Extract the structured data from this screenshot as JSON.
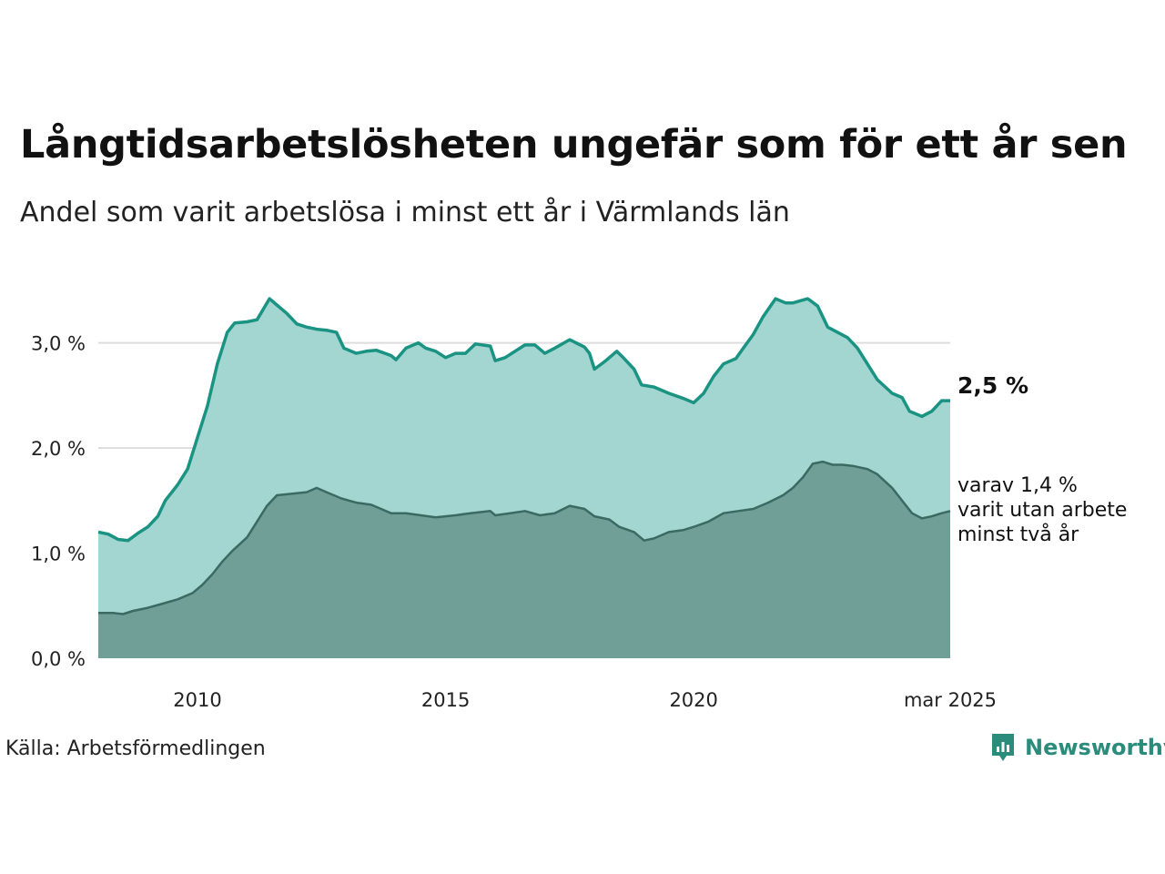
{
  "title": "Långtidsarbetslösheten ungefär som för ett år sen",
  "subtitle": "Andel som varit arbetslösa i minst ett år i Värmlands län",
  "source": "Källa: Arbetsförmedlingen",
  "brand": {
    "name": "Newsworthy",
    "icon": "newsworthy-logo-icon",
    "color": "#2b8c7c"
  },
  "end_label": "2,5 %",
  "annotation": [
    "varav 1,4 %",
    "varit utan arbete",
    "minst två år"
  ],
  "colors": {
    "upper_fill": "#a3d6d0",
    "upper_line": "#1a9383",
    "lower_fill": "#6f9f96",
    "lower_line": "#3b6a62",
    "grid": "#dddddd"
  },
  "chart_data": {
    "type": "area",
    "x_start": "2008-01",
    "x_end": "2025-03",
    "ylim": [
      0,
      3.75
    ],
    "y_ticks": [
      0,
      1,
      2,
      3
    ],
    "y_tick_labels": [
      "0,0 %",
      "1,0 %",
      "2,0 %",
      "3,0 %"
    ],
    "x_ticks": [
      2010,
      2015,
      2020,
      2025.17
    ],
    "x_tick_labels": [
      "2010",
      "2015",
      "2020",
      "mar 2025"
    ],
    "grid": true,
    "series": [
      {
        "label": "minst ett år",
        "points": [
          [
            2008.0,
            1.2
          ],
          [
            2008.2,
            1.18
          ],
          [
            2008.4,
            1.13
          ],
          [
            2008.6,
            1.12
          ],
          [
            2008.8,
            1.19
          ],
          [
            2009.0,
            1.25
          ],
          [
            2009.2,
            1.35
          ],
          [
            2009.35,
            1.5
          ],
          [
            2009.6,
            1.65
          ],
          [
            2009.8,
            1.8
          ],
          [
            2010.0,
            2.1
          ],
          [
            2010.2,
            2.4
          ],
          [
            2010.4,
            2.8
          ],
          [
            2010.6,
            3.1
          ],
          [
            2010.75,
            3.19
          ],
          [
            2011.0,
            3.2
          ],
          [
            2011.2,
            3.22
          ],
          [
            2011.45,
            3.42
          ],
          [
            2011.6,
            3.36
          ],
          [
            2011.8,
            3.28
          ],
          [
            2012.0,
            3.18
          ],
          [
            2012.2,
            3.15
          ],
          [
            2012.4,
            3.13
          ],
          [
            2012.6,
            3.12
          ],
          [
            2012.8,
            3.1
          ],
          [
            2012.95,
            2.95
          ],
          [
            2013.2,
            2.9
          ],
          [
            2013.4,
            2.92
          ],
          [
            2013.6,
            2.93
          ],
          [
            2013.9,
            2.88
          ],
          [
            2014.0,
            2.84
          ],
          [
            2014.2,
            2.95
          ],
          [
            2014.45,
            3.0
          ],
          [
            2014.6,
            2.95
          ],
          [
            2014.8,
            2.92
          ],
          [
            2015.0,
            2.86
          ],
          [
            2015.2,
            2.9
          ],
          [
            2015.4,
            2.9
          ],
          [
            2015.6,
            2.99
          ],
          [
            2015.9,
            2.97
          ],
          [
            2016.0,
            2.83
          ],
          [
            2016.2,
            2.86
          ],
          [
            2016.4,
            2.92
          ],
          [
            2016.6,
            2.98
          ],
          [
            2016.8,
            2.98
          ],
          [
            2017.0,
            2.9
          ],
          [
            2017.2,
            2.95
          ],
          [
            2017.5,
            3.03
          ],
          [
            2017.8,
            2.96
          ],
          [
            2017.9,
            2.9
          ],
          [
            2018.0,
            2.75
          ],
          [
            2018.2,
            2.82
          ],
          [
            2018.45,
            2.92
          ],
          [
            2018.6,
            2.85
          ],
          [
            2018.8,
            2.75
          ],
          [
            2018.95,
            2.6
          ],
          [
            2019.2,
            2.58
          ],
          [
            2019.5,
            2.52
          ],
          [
            2019.8,
            2.47
          ],
          [
            2020.0,
            2.43
          ],
          [
            2020.2,
            2.52
          ],
          [
            2020.4,
            2.68
          ],
          [
            2020.6,
            2.8
          ],
          [
            2020.85,
            2.85
          ],
          [
            2021.0,
            2.95
          ],
          [
            2021.2,
            3.08
          ],
          [
            2021.4,
            3.25
          ],
          [
            2021.65,
            3.42
          ],
          [
            2021.85,
            3.38
          ],
          [
            2022.0,
            3.38
          ],
          [
            2022.3,
            3.42
          ],
          [
            2022.5,
            3.35
          ],
          [
            2022.7,
            3.15
          ],
          [
            2022.9,
            3.1
          ],
          [
            2023.1,
            3.05
          ],
          [
            2023.3,
            2.95
          ],
          [
            2023.5,
            2.8
          ],
          [
            2023.7,
            2.65
          ],
          [
            2024.0,
            2.52
          ],
          [
            2024.2,
            2.48
          ],
          [
            2024.35,
            2.35
          ],
          [
            2024.6,
            2.3
          ],
          [
            2024.8,
            2.35
          ],
          [
            2025.0,
            2.45
          ],
          [
            2025.17,
            2.45
          ]
        ]
      },
      {
        "label": "varav minst två år",
        "points": [
          [
            2008.0,
            0.43
          ],
          [
            2008.3,
            0.43
          ],
          [
            2008.5,
            0.42
          ],
          [
            2008.7,
            0.45
          ],
          [
            2009.0,
            0.48
          ],
          [
            2009.3,
            0.52
          ],
          [
            2009.6,
            0.56
          ],
          [
            2009.9,
            0.62
          ],
          [
            2010.1,
            0.7
          ],
          [
            2010.3,
            0.8
          ],
          [
            2010.5,
            0.92
          ],
          [
            2010.7,
            1.02
          ],
          [
            2011.0,
            1.15
          ],
          [
            2011.2,
            1.3
          ],
          [
            2011.4,
            1.45
          ],
          [
            2011.6,
            1.55
          ],
          [
            2012.0,
            1.57
          ],
          [
            2012.2,
            1.58
          ],
          [
            2012.4,
            1.62
          ],
          [
            2012.6,
            1.58
          ],
          [
            2012.9,
            1.52
          ],
          [
            2013.2,
            1.48
          ],
          [
            2013.5,
            1.46
          ],
          [
            2013.7,
            1.42
          ],
          [
            2013.9,
            1.38
          ],
          [
            2014.2,
            1.38
          ],
          [
            2014.5,
            1.36
          ],
          [
            2014.8,
            1.34
          ],
          [
            2015.2,
            1.36
          ],
          [
            2015.5,
            1.38
          ],
          [
            2015.9,
            1.4
          ],
          [
            2016.0,
            1.36
          ],
          [
            2016.3,
            1.38
          ],
          [
            2016.6,
            1.4
          ],
          [
            2016.9,
            1.36
          ],
          [
            2017.2,
            1.38
          ],
          [
            2017.5,
            1.45
          ],
          [
            2017.8,
            1.42
          ],
          [
            2018.0,
            1.35
          ],
          [
            2018.3,
            1.32
          ],
          [
            2018.5,
            1.25
          ],
          [
            2018.8,
            1.2
          ],
          [
            2019.0,
            1.12
          ],
          [
            2019.2,
            1.14
          ],
          [
            2019.5,
            1.2
          ],
          [
            2019.8,
            1.22
          ],
          [
            2020.0,
            1.25
          ],
          [
            2020.3,
            1.3
          ],
          [
            2020.6,
            1.38
          ],
          [
            2020.9,
            1.4
          ],
          [
            2021.2,
            1.42
          ],
          [
            2021.5,
            1.48
          ],
          [
            2021.8,
            1.55
          ],
          [
            2022.0,
            1.62
          ],
          [
            2022.2,
            1.72
          ],
          [
            2022.4,
            1.85
          ],
          [
            2022.6,
            1.87
          ],
          [
            2022.8,
            1.84
          ],
          [
            2023.0,
            1.84
          ],
          [
            2023.2,
            1.83
          ],
          [
            2023.5,
            1.8
          ],
          [
            2023.7,
            1.75
          ],
          [
            2024.0,
            1.62
          ],
          [
            2024.2,
            1.5
          ],
          [
            2024.4,
            1.38
          ],
          [
            2024.6,
            1.33
          ],
          [
            2024.8,
            1.35
          ],
          [
            2025.0,
            1.38
          ],
          [
            2025.17,
            1.4
          ]
        ]
      }
    ]
  }
}
